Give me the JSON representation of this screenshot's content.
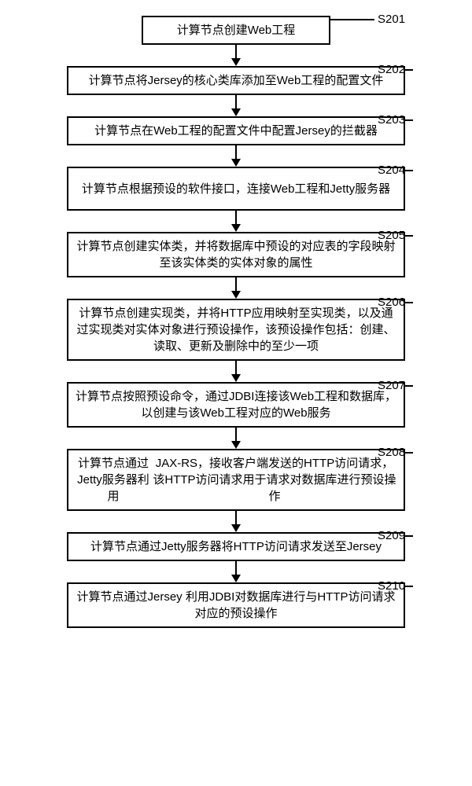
{
  "diagram": {
    "type": "flowchart",
    "background_color": "#ffffff",
    "border_color": "#000000",
    "text_color": "#000000",
    "font_family": "SimSun",
    "box_border_width": 2,
    "line_width": 2,
    "arrow_size": 10,
    "box_width_narrow": 240,
    "box_width_wide": 430,
    "font_size_box": 15,
    "font_size_label": 15,
    "connector_height_short": 18,
    "connector_height_tall": 18,
    "label_offset_x": 470,
    "tick_length": 30,
    "steps": [
      {
        "id": "S201",
        "text": "计算节点创建Web工程",
        "width": "narrow",
        "lines": 1
      },
      {
        "id": "S202",
        "text": "计算节点将Jersey的核心类库添加至Web工程的配置文件",
        "width": "wide",
        "lines": 1
      },
      {
        "id": "S203",
        "text": "计算节点在Web工程的配置文件中配置Jersey的拦截器",
        "width": "wide",
        "lines": 1
      },
      {
        "id": "S204",
        "text": "计算节点根据预设的软件接口，连接Web工程和Jetty服务器",
        "width": "wide",
        "lines": 2
      },
      {
        "id": "S205",
        "text": "计算节点创建实体类，并将数据库中预设的对应表的字段映射至该实体类的实体对象的属性",
        "width": "wide",
        "lines": 2
      },
      {
        "id": "S206",
        "text": "计算节点创建实现类，并将HTTP应用映射至实现类，以及通过实现类对实体对象进行预设操作，该预设操作包括：创建、读取、更新及删除中的至少一项",
        "width": "wide",
        "lines": 3
      },
      {
        "id": "S207",
        "text": "计算节点按照预设命令，通过JDBI连接该Web工程和数据库，以创建与该Web工程对应的Web服务",
        "width": "wide",
        "lines": 2
      },
      {
        "id": "S208",
        "text": "计算节点通过Jetty服务器利用\nJAX-RS，接收客户端发送的HTTP访问请求，该HTTP访问请求用于请求对数据库进行预设操作",
        "width": "wide",
        "lines": 3
      },
      {
        "id": "S209",
        "text": "计算节点通过Jetty服务器将HTTP访问请求发送至Jersey",
        "width": "wide",
        "lines": 1
      },
      {
        "id": "S210",
        "text": "计算节点通过Jersey 利用JDBI对数据库进行与HTTP访问请求对应的预设操作",
        "width": "wide",
        "lines": 2
      }
    ]
  }
}
